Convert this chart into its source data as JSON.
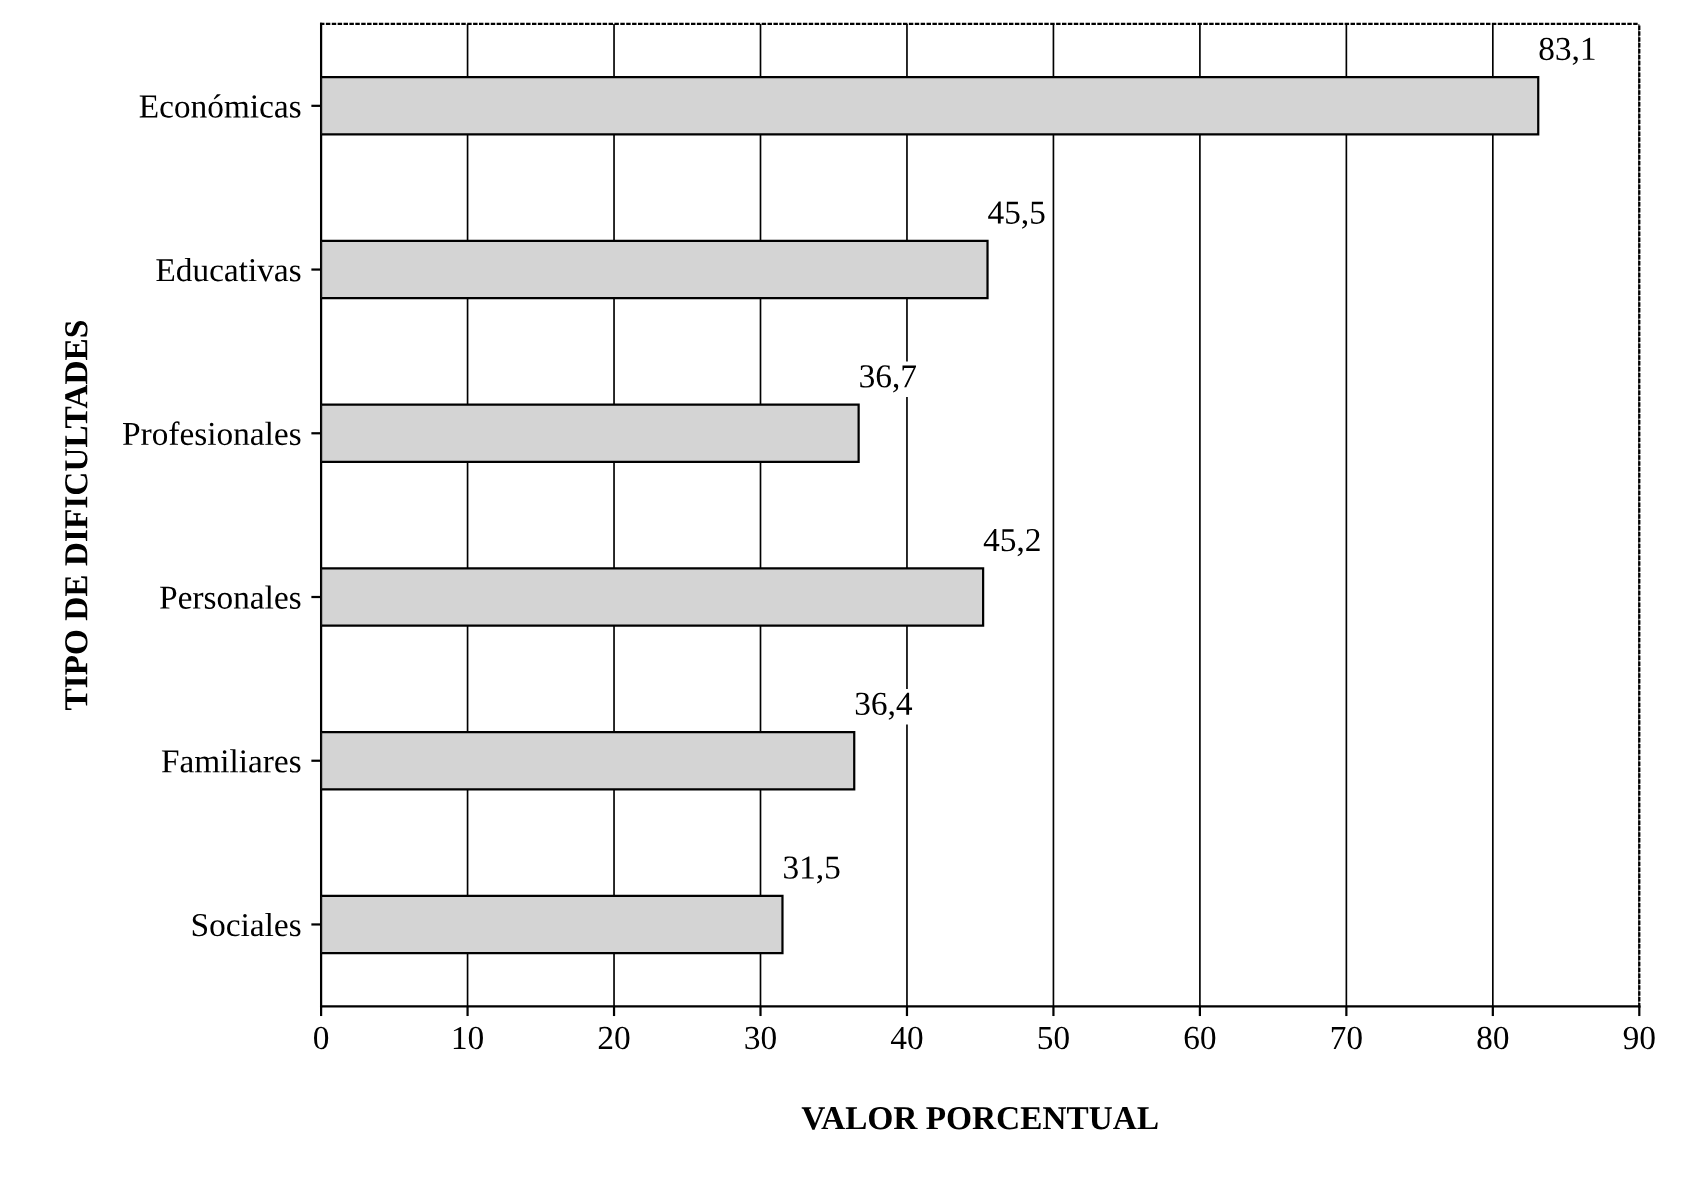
{
  "chart_data": {
    "type": "bar",
    "orientation": "horizontal",
    "xlabel": "VALOR PORCENTUAL",
    "ylabel": "TIPO DE DIFICULTADES",
    "categories": [
      "Económicas",
      "Educativas",
      "Profesionales",
      "Personales",
      "Familiares",
      "Sociales"
    ],
    "values": [
      83.1,
      45.5,
      36.7,
      45.2,
      36.4,
      31.5
    ],
    "value_labels": [
      "83,1",
      "45,5",
      "36,7",
      "45,2",
      "36,4",
      "31,5"
    ],
    "color": "#d4d4d4",
    "xlim": [
      0,
      90
    ],
    "xticks": [
      0,
      10,
      20,
      30,
      40,
      50,
      60,
      70,
      80,
      90
    ],
    "grid": "x"
  }
}
